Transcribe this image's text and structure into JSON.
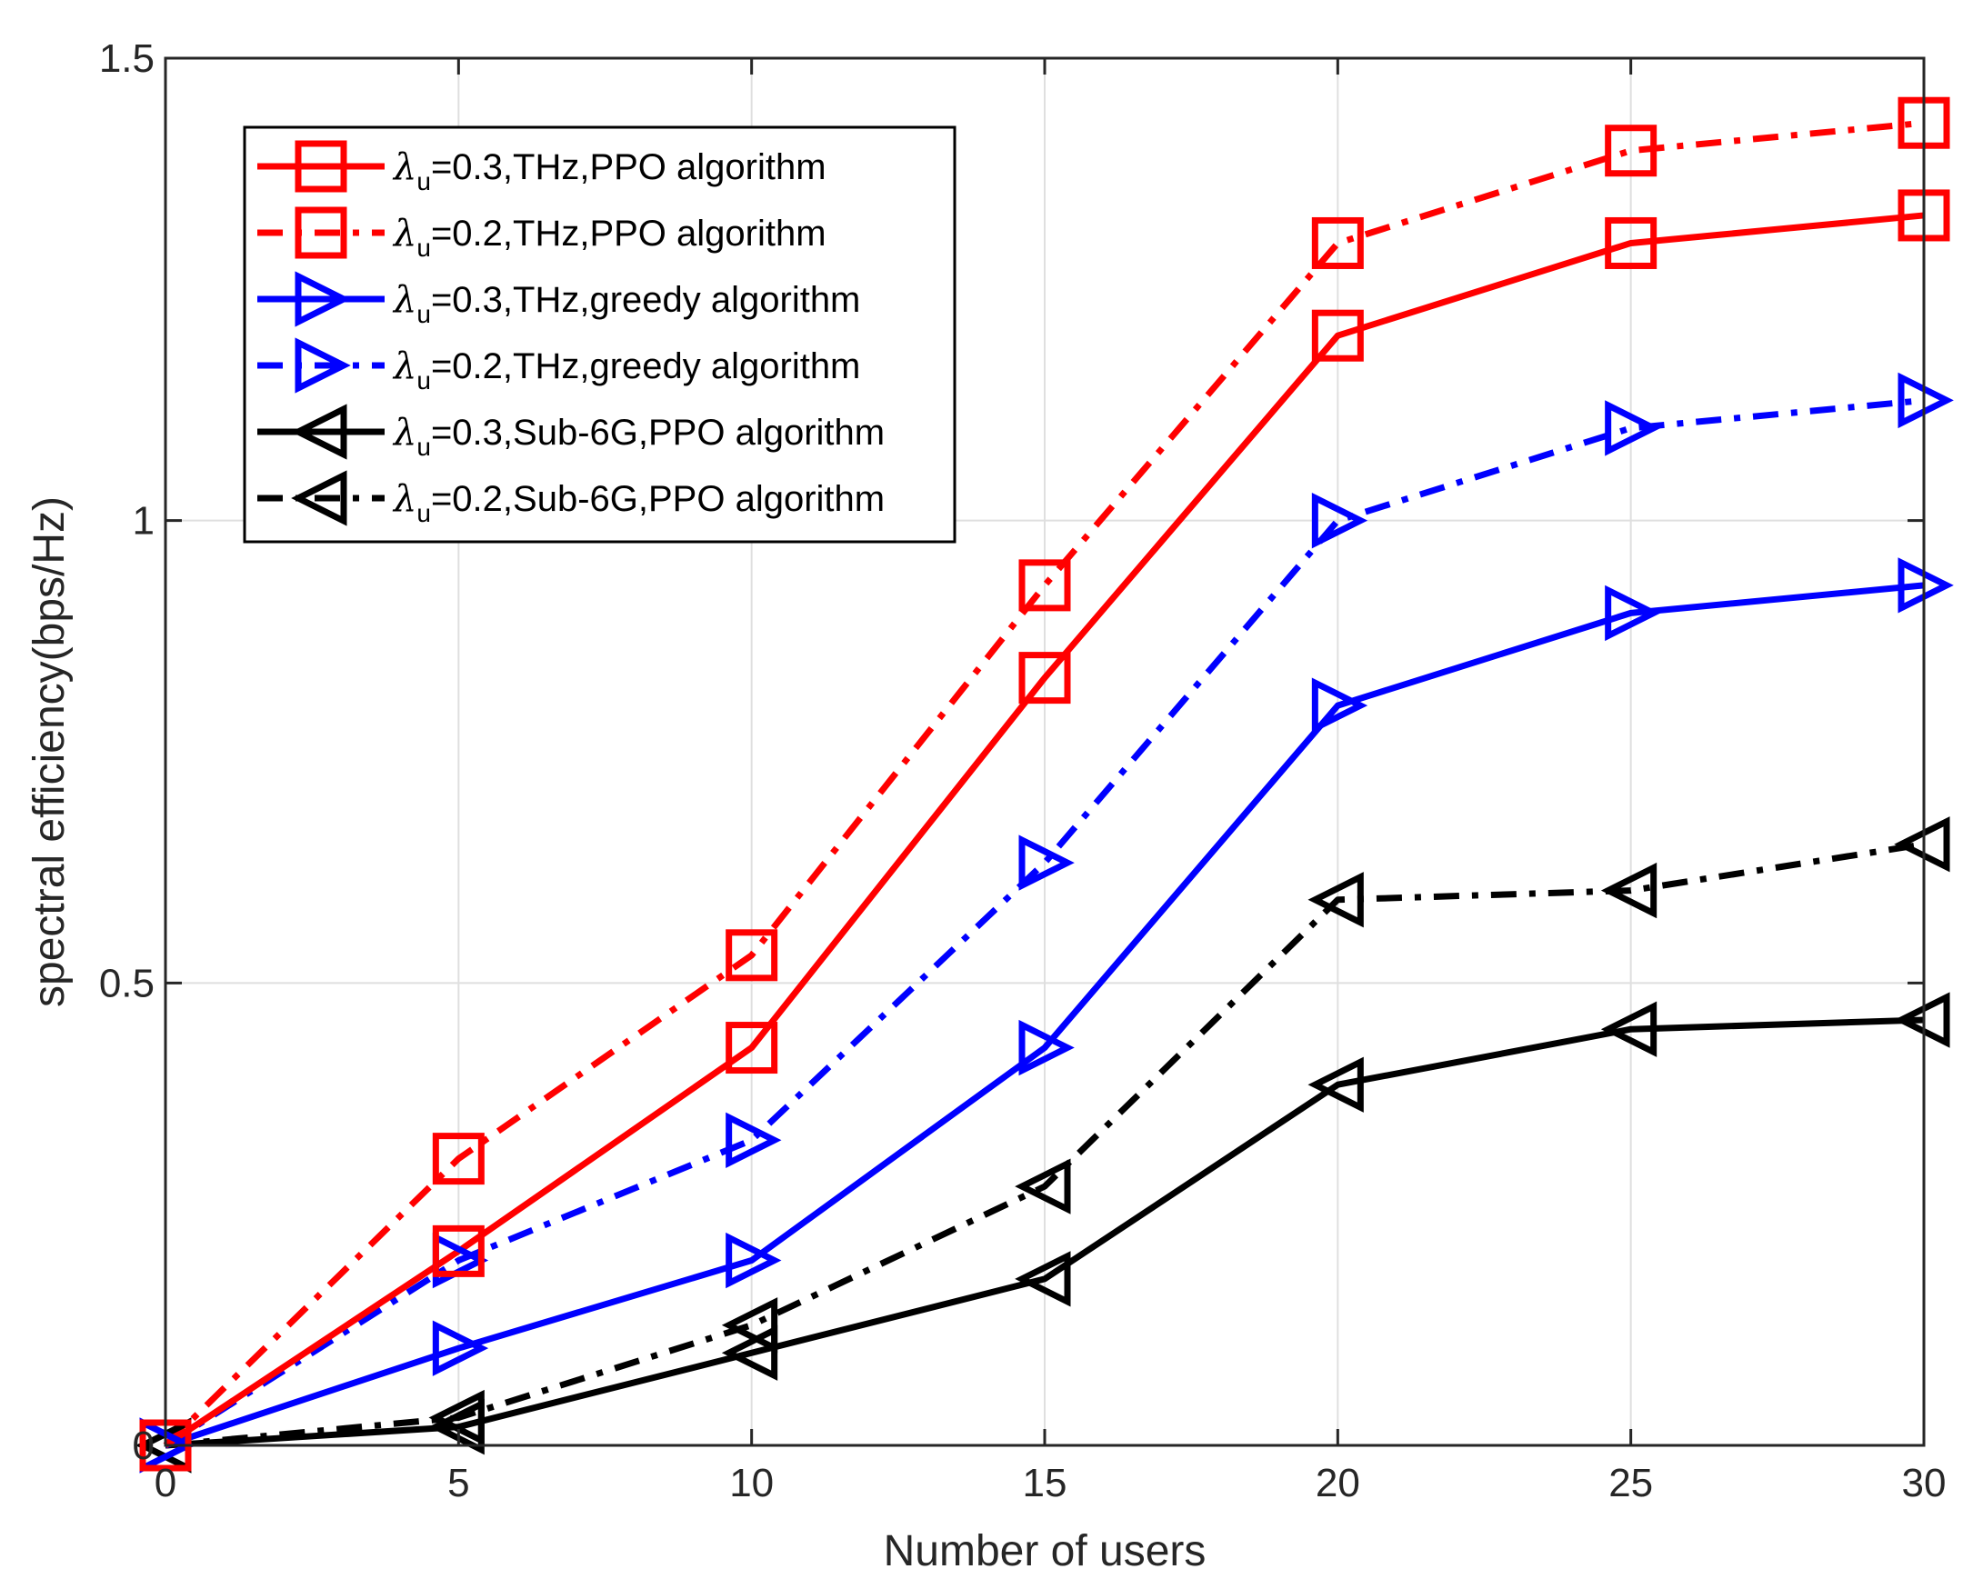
{
  "chart_data": {
    "type": "line",
    "xlabel": "Number of users",
    "ylabel": "spectral efficiency(bps/Hz)",
    "xlim": [
      0,
      30
    ],
    "ylim": [
      0,
      1.5
    ],
    "xticks": [
      0,
      5,
      10,
      15,
      20,
      25,
      30
    ],
    "yticks": [
      0,
      0.5,
      1,
      1.5
    ],
    "xtick_labels": [
      "0",
      "5",
      "10",
      "15",
      "20",
      "25",
      "30"
    ],
    "ytick_labels": [
      "0",
      "0.5",
      "1",
      "1.5"
    ],
    "grid": true,
    "legend_position": "top-left",
    "x": [
      0,
      5,
      10,
      15,
      20,
      25,
      30
    ],
    "series": [
      {
        "name": "λu=0.3,THz,PPO algorithm",
        "symbol": "λ",
        "subscript": "u",
        "rest": "=0.3,THz,PPO algorithm",
        "color": "#ff0000",
        "dash": "solid",
        "marker": "square",
        "values": [
          0,
          0.21,
          0.43,
          0.83,
          1.2,
          1.3,
          1.33
        ]
      },
      {
        "name": "λu=0.2,THz,PPO algorithm",
        "symbol": "λ",
        "subscript": "u",
        "rest": "=0.2,THz,PPO algorithm",
        "color": "#ff0000",
        "dash": "dashdot",
        "marker": "square",
        "values": [
          0,
          0.31,
          0.53,
          0.93,
          1.3,
          1.4,
          1.43
        ]
      },
      {
        "name": "λu=0.3,THz,greedy algorithm",
        "symbol": "λ",
        "subscript": "u",
        "rest": "=0.3,THz,greedy algorithm",
        "color": "#0000ff",
        "dash": "solid",
        "marker": "triangle-right",
        "values": [
          0,
          0.105,
          0.2,
          0.43,
          0.8,
          0.9,
          0.93
        ]
      },
      {
        "name": "λu=0.2,THz,greedy algorithm",
        "symbol": "λ",
        "subscript": "u",
        "rest": "=0.2,THz,greedy algorithm",
        "color": "#0000ff",
        "dash": "dashdot",
        "marker": "triangle-right",
        "values": [
          0,
          0.2,
          0.33,
          0.63,
          1.0,
          1.1,
          1.13
        ]
      },
      {
        "name": "λu=0.3,Sub-6G,PPO algorithm",
        "symbol": "λ",
        "subscript": "u",
        "rest": "=0.3,Sub-6G,PPO algorithm",
        "color": "#000000",
        "dash": "solid",
        "marker": "triangle-left",
        "values": [
          0,
          0.02,
          0.1,
          0.18,
          0.39,
          0.45,
          0.46
        ]
      },
      {
        "name": "λu=0.2,Sub-6G,PPO algorithm",
        "symbol": "λ",
        "subscript": "u",
        "rest": "=0.2,Sub-6G,PPO algorithm",
        "color": "#000000",
        "dash": "dashdot",
        "marker": "triangle-left",
        "values": [
          0,
          0.03,
          0.13,
          0.28,
          0.59,
          0.6,
          0.65
        ]
      }
    ]
  }
}
